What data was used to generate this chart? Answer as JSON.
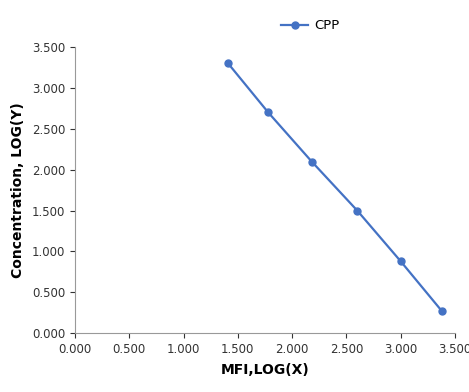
{
  "x": [
    1.41,
    1.78,
    2.18,
    2.6,
    3.0,
    3.38
  ],
  "y": [
    3.3,
    2.7,
    2.1,
    1.5,
    0.88,
    0.27
  ],
  "line_color": "#4472C4",
  "marker": "o",
  "marker_size": 5,
  "line_width": 1.6,
  "xlabel": "MFI,LOG(X)",
  "ylabel": "Concentration, LOG(Y)",
  "xlim": [
    0.0,
    3.5
  ],
  "ylim": [
    0.0,
    3.5
  ],
  "xticks": [
    0.0,
    0.5,
    1.0,
    1.5,
    2.0,
    2.5,
    3.0,
    3.5
  ],
  "yticks": [
    0.0,
    0.5,
    1.0,
    1.5,
    2.0,
    2.5,
    3.0,
    3.5
  ],
  "legend_label": "CPP",
  "background_color": "#ffffff",
  "tick_label_fontsize": 8.5,
  "axis_label_fontsize": 10,
  "legend_fontsize": 9.5
}
